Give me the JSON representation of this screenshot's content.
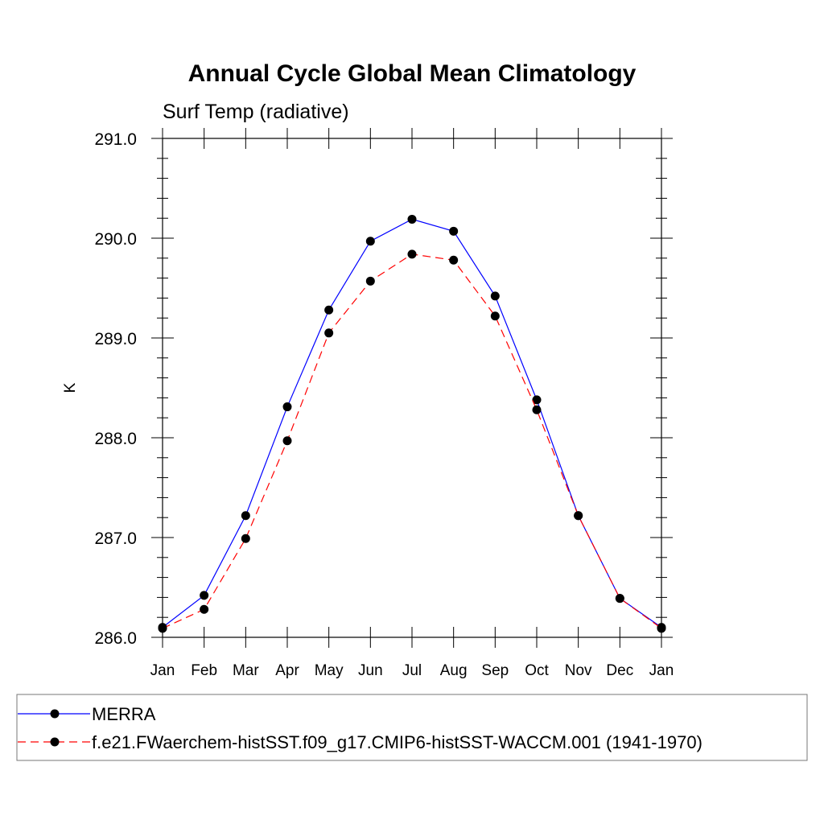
{
  "chart_data": {
    "type": "line",
    "title": "Annual Cycle Global Mean Climatology",
    "subtitle": "Surf Temp (radiative)",
    "ylabel": "K",
    "xlabel": "",
    "categories": [
      "Jan",
      "Feb",
      "Mar",
      "Apr",
      "May",
      "Jun",
      "Jul",
      "Aug",
      "Sep",
      "Oct",
      "Nov",
      "Dec",
      "Jan"
    ],
    "ylim": [
      286.0,
      291.0
    ],
    "yticks": [
      286.0,
      287.0,
      288.0,
      289.0,
      290.0,
      291.0
    ],
    "ytick_labels": [
      "286.0",
      "287.0",
      "288.0",
      "289.0",
      "290.0",
      "291.0"
    ],
    "grid": false,
    "legend_position": "bottom",
    "series": [
      {
        "name": "MERRA",
        "color": "#0000ff",
        "line_style": "solid",
        "marker": "filled-circle",
        "values": [
          286.1,
          286.42,
          287.22,
          288.31,
          289.28,
          289.97,
          290.19,
          290.07,
          289.42,
          288.38,
          287.22,
          286.39,
          286.1
        ]
      },
      {
        "name": "f.e21.FWaerchem-histSST.f09_g17.CMIP6-histSST-WACCM.001 (1941-1970)",
        "color": "#ff0000",
        "line_style": "dashed",
        "marker": "filled-circle",
        "values": [
          286.09,
          286.28,
          286.99,
          287.97,
          289.05,
          289.57,
          289.84,
          289.78,
          289.22,
          288.28,
          287.22,
          286.39,
          286.09
        ]
      }
    ]
  }
}
